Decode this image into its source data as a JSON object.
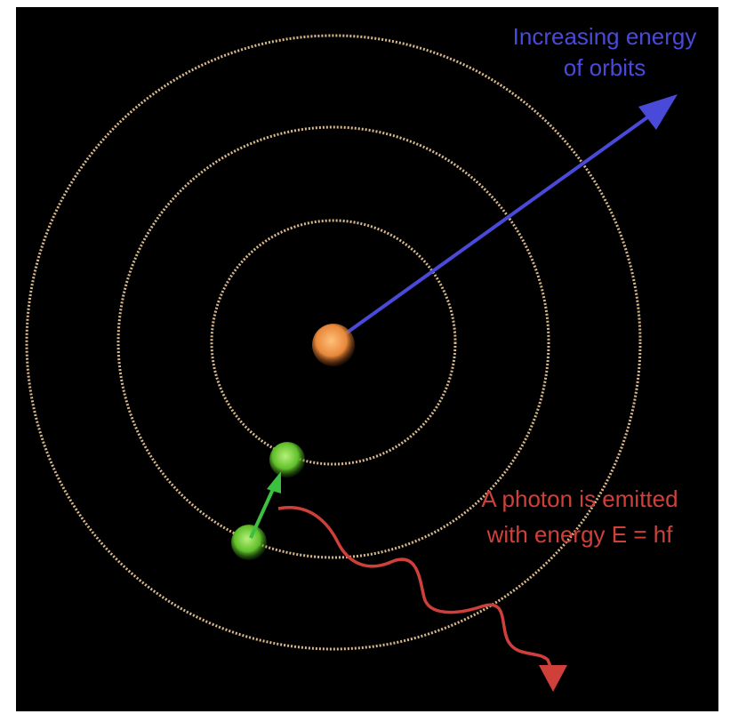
{
  "energy_label": [
    "Increasing energy",
    "of orbits"
  ],
  "photon_label": [
    "A photon is emitted",
    "with energy E = hf"
  ]
}
